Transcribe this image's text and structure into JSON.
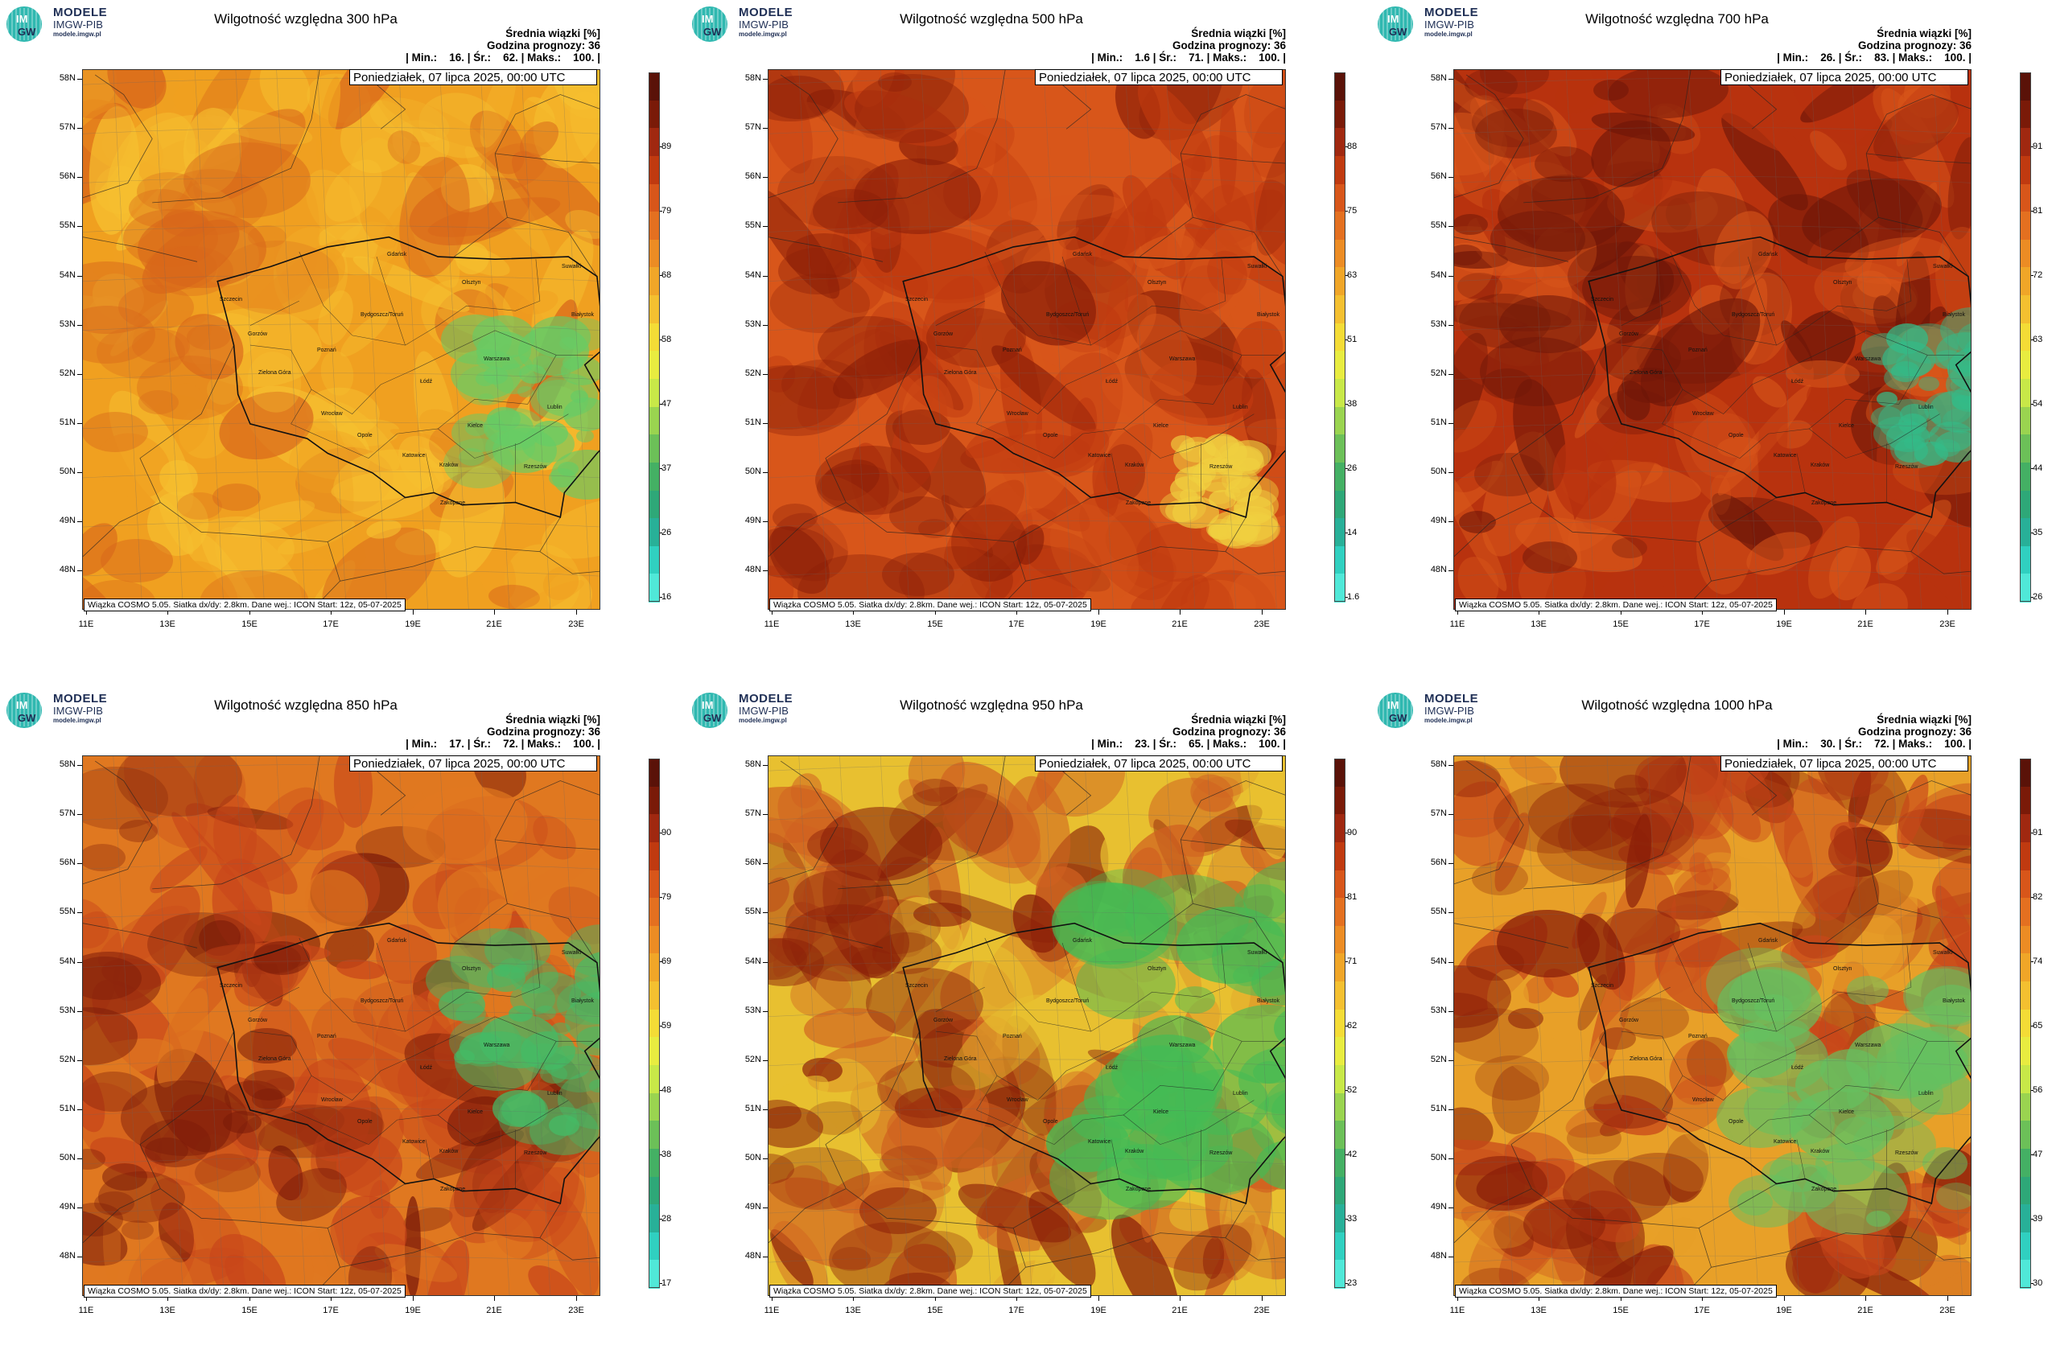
{
  "logo": {
    "name": "MODELE",
    "sub": "IMGW-PIB",
    "url": "modele.imgw.pl",
    "badge_top": "IM",
    "badge_bottom": "GW",
    "color": "#1f2f55",
    "accent": "#2fb8b0"
  },
  "date_label": "Poniedziałek, 07 lipca 2025, 00:00 UTC",
  "footer": "Wiązka COSMO 5.05. Siatka dx/dy: 2.8km. Dane wej.: ICON Start: 12z, 05-07-2025",
  "stats_labels": {
    "avg": "Średnia wiązki [%]",
    "hour_label": "Godzina prognozy:",
    "hour": "36",
    "min": "| Min.:",
    "mean": "| Śr.:",
    "max": "| Maks.:",
    "end": "|"
  },
  "lat_labels": [
    "58N",
    "57N",
    "56N",
    "55N",
    "54N",
    "53N",
    "52N",
    "51N",
    "50N",
    "49N",
    "48N"
  ],
  "lon_labels": [
    "11E",
    "13E",
    "15E",
    "17E",
    "19E",
    "21E",
    "23E"
  ],
  "cities": [
    {
      "name": "Gdańsk",
      "lon": 18.65,
      "lat": 54.35
    },
    {
      "name": "Suwałki",
      "lon": 22.93,
      "lat": 54.1
    },
    {
      "name": "Olsztyn",
      "lon": 20.48,
      "lat": 53.78
    },
    {
      "name": "Białystok",
      "lon": 23.16,
      "lat": 53.13
    },
    {
      "name": "Szczecin",
      "lon": 14.55,
      "lat": 53.43
    },
    {
      "name": "Bydgoszcz/Toruń",
      "lon": 18.0,
      "lat": 53.12
    },
    {
      "name": "Gorzów",
      "lon": 15.23,
      "lat": 52.73
    },
    {
      "name": "Poznań",
      "lon": 16.93,
      "lat": 52.41
    },
    {
      "name": "Warszawa",
      "lon": 21.01,
      "lat": 52.23
    },
    {
      "name": "Zielona Góra",
      "lon": 15.5,
      "lat": 51.94
    },
    {
      "name": "Łódź",
      "lon": 19.46,
      "lat": 51.76
    },
    {
      "name": "Lublin",
      "lon": 22.57,
      "lat": 51.25
    },
    {
      "name": "Wrocław",
      "lon": 17.03,
      "lat": 51.11
    },
    {
      "name": "Kielce",
      "lon": 20.63,
      "lat": 50.87
    },
    {
      "name": "Opole",
      "lon": 17.93,
      "lat": 50.67
    },
    {
      "name": "Rzeszów",
      "lon": 22.0,
      "lat": 50.04
    },
    {
      "name": "Katowice",
      "lon": 19.02,
      "lat": 50.26
    },
    {
      "name": "Kraków",
      "lon": 19.94,
      "lat": 50.06
    },
    {
      "name": "Zakopane",
      "lon": 19.95,
      "lat": 49.3
    }
  ],
  "panels": [
    {
      "title": "Wilgotność względna 300 hPa",
      "min": "16.",
      "mean": "62.",
      "max": "100.",
      "ticks": [
        "89",
        "79",
        "68",
        "58",
        "47",
        "37",
        "26",
        "16"
      ],
      "base_color": "#f0a020",
      "variation": "#f6c030",
      "moist_color": "#66cc66",
      "dry_color": "#d8661a"
    },
    {
      "title": "Wilgotność względna 500 hPa",
      "min": "1.6",
      "mean": "71.",
      "max": "100.",
      "ticks": [
        "88",
        "75",
        "63",
        "51",
        "38",
        "26",
        "14",
        "1.6"
      ],
      "base_color": "#d8561a",
      "variation": "#c03a10",
      "moist_color": "#f0d040",
      "dry_color": "#8a1e08"
    },
    {
      "title": "Wilgotność względna 700 hPa",
      "min": "26.",
      "mean": "83.",
      "max": "100.",
      "ticks": [
        "91",
        "81",
        "72",
        "63",
        "54",
        "44",
        "35",
        "26"
      ],
      "base_color": "#b8320e",
      "variation": "#d8561a",
      "moist_color": "#33bb88",
      "dry_color": "#6e1608"
    },
    {
      "title": "Wilgotność względna 850 hPa",
      "min": "17.",
      "mean": "72.",
      "max": "100.",
      "ticks": [
        "90",
        "79",
        "69",
        "59",
        "48",
        "38",
        "28",
        "17"
      ],
      "base_color": "#e07820",
      "variation": "#c8461a",
      "moist_color": "#44bb66",
      "dry_color": "#7a1a08"
    },
    {
      "title": "Wilgotność względna 950 hPa",
      "min": "23.",
      "mean": "65.",
      "max": "100.",
      "ticks": [
        "90",
        "81",
        "71",
        "62",
        "52",
        "42",
        "33",
        "23"
      ],
      "base_color": "#e8c030",
      "variation": "#d06020",
      "moist_color": "#44bb55",
      "dry_color": "#8a1e08"
    },
    {
      "title": "Wilgotność względna 1000 hPa",
      "min": "30.",
      "mean": "72.",
      "max": "100.",
      "ticks": [
        "91",
        "82",
        "74",
        "65",
        "56",
        "47",
        "39",
        "30"
      ],
      "base_color": "#e8a028",
      "variation": "#c8461a",
      "moist_color": "#66c060",
      "dry_color": "#8a1e08"
    }
  ],
  "colorbar_colors": [
    "#5a1208",
    "#7a1a08",
    "#a02810",
    "#c03a10",
    "#d8561a",
    "#e47020",
    "#ec8c24",
    "#f0a628",
    "#f4c030",
    "#f4dc36",
    "#e8ec40",
    "#c8e848",
    "#9ad450",
    "#6cc058",
    "#44b064",
    "#2ea878",
    "#28b098",
    "#30d0c0",
    "#50e8d8"
  ]
}
